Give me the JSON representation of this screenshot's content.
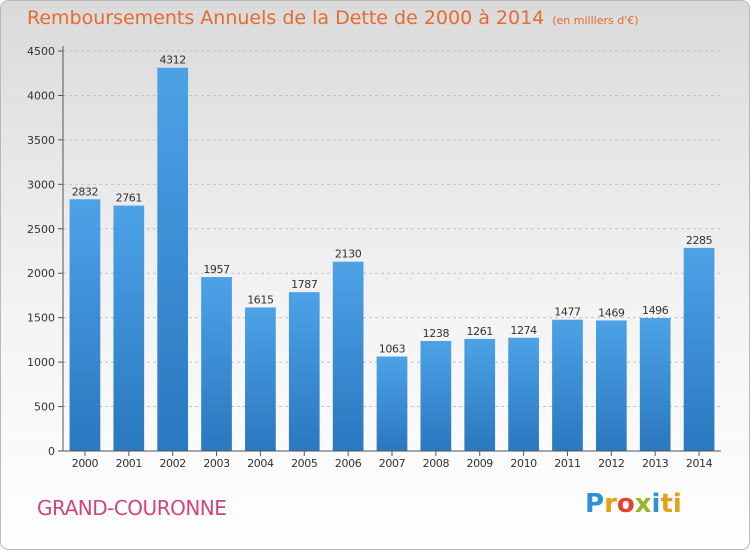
{
  "header": {
    "title": "Remboursements Annuels de la Dette de 2000 à 2014",
    "unit": "(en milliers d'€)"
  },
  "footer": {
    "commune": "GRAND-COURONNE",
    "logo": [
      "P",
      "r",
      "o",
      "x",
      "i",
      "ti"
    ]
  },
  "colors": {
    "title": "#e56b2f",
    "bar": "#3a8fd6",
    "commune": "#d24576"
  },
  "chart_data": {
    "type": "bar",
    "title": "Remboursements Annuels de la Dette de 2000 à 2014",
    "subtitle": "(en milliers d'€)",
    "xlabel": "",
    "ylabel": "",
    "categories": [
      "2000",
      "2001",
      "2002",
      "2003",
      "2004",
      "2005",
      "2006",
      "2007",
      "2008",
      "2009",
      "2010",
      "2011",
      "2012",
      "2013",
      "2014"
    ],
    "values": [
      2832,
      2761,
      4312,
      1957,
      1615,
      1787,
      2130,
      1063,
      1238,
      1261,
      1274,
      1477,
      1469,
      1496,
      2285
    ],
    "yticks": [
      0,
      500,
      1000,
      1500,
      2000,
      2500,
      3000,
      3500,
      4000,
      4500
    ],
    "ylim": [
      0,
      4500
    ],
    "grid": true,
    "legend": "none"
  }
}
